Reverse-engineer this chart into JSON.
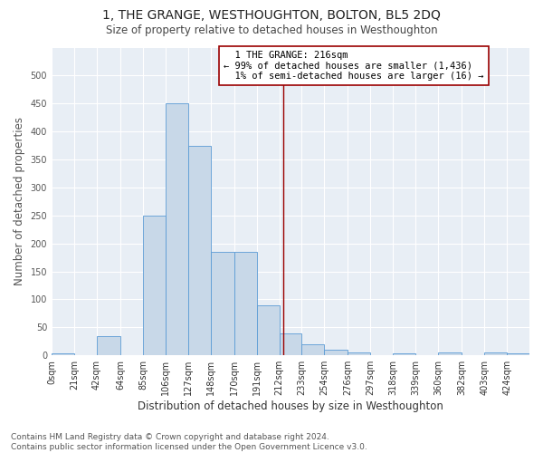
{
  "title": "1, THE GRANGE, WESTHOUGHTON, BOLTON, BL5 2DQ",
  "subtitle": "Size of property relative to detached houses in Westhoughton",
  "xlabel": "Distribution of detached houses by size in Westhoughton",
  "ylabel": "Number of detached properties",
  "footnote": "Contains HM Land Registry data © Crown copyright and database right 2024.\nContains public sector information licensed under the Open Government Licence v3.0.",
  "bin_edges": [
    0,
    21,
    42,
    64,
    85,
    106,
    127,
    148,
    170,
    191,
    212,
    233,
    254,
    276,
    297,
    318,
    339,
    360,
    382,
    403,
    424,
    445
  ],
  "bar_heights": [
    3,
    0,
    35,
    0,
    250,
    450,
    375,
    185,
    185,
    90,
    40,
    20,
    10,
    5,
    0,
    3,
    0,
    5,
    0,
    5,
    3
  ],
  "bar_color": "#c8d8e8",
  "bar_edgecolor": "#5b9bd5",
  "tick_labels": [
    "0sqm",
    "21sqm",
    "42sqm",
    "64sqm",
    "85sqm",
    "106sqm",
    "127sqm",
    "148sqm",
    "170sqm",
    "191sqm",
    "212sqm",
    "233sqm",
    "254sqm",
    "276sqm",
    "297sqm",
    "318sqm",
    "339sqm",
    "360sqm",
    "382sqm",
    "403sqm",
    "424sqm"
  ],
  "property_size": 216,
  "vline_color": "#9b0000",
  "annotation_text": "  1 THE GRANGE: 216sqm\n← 99% of detached houses are smaller (1,436)\n  1% of semi-detached houses are larger (16) →",
  "annotation_box_color": "#9b0000",
  "ylim": [
    0,
    550
  ],
  "yticks": [
    0,
    50,
    100,
    150,
    200,
    250,
    300,
    350,
    400,
    450,
    500
  ],
  "background_color": "#e8eef5",
  "grid_color": "#ffffff",
  "title_fontsize": 10,
  "subtitle_fontsize": 8.5,
  "axis_label_fontsize": 8.5,
  "tick_fontsize": 7,
  "annotation_fontsize": 7.5,
  "footnote_fontsize": 6.5
}
